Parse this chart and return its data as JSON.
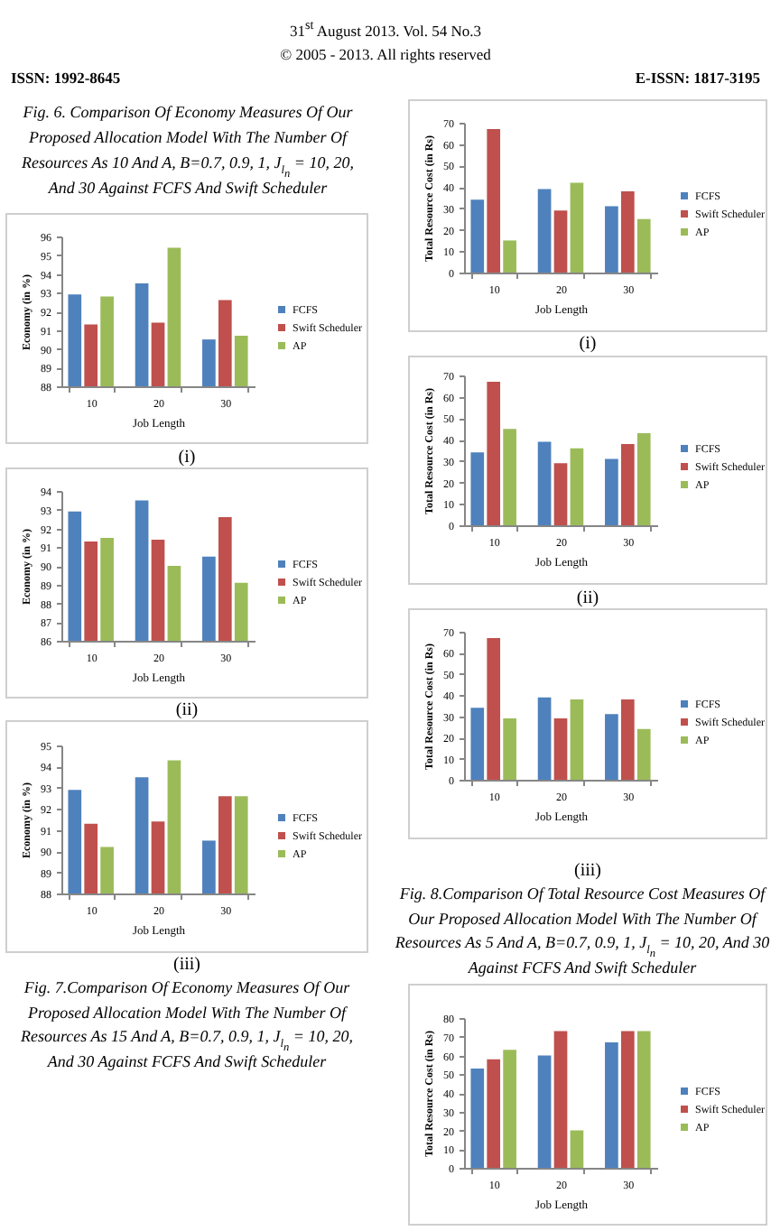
{
  "chart_data": [
    {
      "type": "other",
      "annotations": [
        "31$^{st}$ August 2013. Vol. 54 No.3",
        "© 2005 - 2013. All rights reserved",
        "ISSN: 1992-8645",
        "E-ISSN: 1817-3195"
      ]
    },
    {
      "type": "other",
      "annotations": [
        "Fig. 6. Comparison Of Economy Measures Of Our Proposed Allocation Model With The Number Of Resources As 10 And A, B=0.7, 0.9, 1, J$_{l}$$_{n}$ = 10, 20, And 30 Against FCFS And Swift Scheduler"
      ]
    },
    {
      "type": "bar",
      "xlabel": "Job Length",
      "ylabel": "Economy (in %)",
      "categories": [
        "10",
        "20",
        "30"
      ],
      "series": [
        {
          "name": "FCFS",
          "color": "#4f81bd",
          "values": [
            92.9,
            93.5,
            90.5
          ]
        },
        {
          "name": "Swift Scheduler",
          "color": "#c0504d",
          "values": [
            91.3,
            91.4,
            92.6
          ]
        },
        {
          "name": "AP",
          "color": "#9bbb59",
          "values": [
            92.8,
            95.4,
            90.7
          ]
        }
      ],
      "ylim": [
        88,
        96
      ],
      "yticks": [
        88,
        89,
        90,
        91,
        92,
        93,
        94,
        95,
        96
      ],
      "legend": "right",
      "annotations": [
        "(i)"
      ]
    },
    {
      "type": "bar",
      "xlabel": "Job Length",
      "ylabel": "Economy (in %)",
      "categories": [
        "10",
        "20",
        "30"
      ],
      "series": [
        {
          "name": "FCFS",
          "color": "#4f81bd",
          "values": [
            92.9,
            93.5,
            90.5
          ]
        },
        {
          "name": "Swift Scheduler",
          "color": "#c0504d",
          "values": [
            91.3,
            91.4,
            92.6
          ]
        },
        {
          "name": "AP",
          "color": "#9bbb59",
          "values": [
            91.5,
            90.0,
            89.1
          ]
        }
      ],
      "ylim": [
        86,
        94
      ],
      "yticks": [
        86,
        87,
        88,
        89,
        90,
        91,
        92,
        93,
        94
      ],
      "legend": "right",
      "annotations": [
        "(ii)"
      ]
    },
    {
      "type": "bar",
      "xlabel": "Job Length",
      "ylabel": "Economy (in %)",
      "categories": [
        "10",
        "20",
        "30"
      ],
      "series": [
        {
          "name": "FCFS",
          "color": "#4f81bd",
          "values": [
            92.9,
            93.5,
            90.5
          ]
        },
        {
          "name": "Swift Scheduler",
          "color": "#c0504d",
          "values": [
            91.3,
            91.4,
            92.6
          ]
        },
        {
          "name": "AP",
          "color": "#9bbb59",
          "values": [
            90.2,
            94.3,
            92.6
          ]
        }
      ],
      "ylim": [
        88,
        95
      ],
      "yticks": [
        88,
        89,
        90,
        91,
        92,
        93,
        94,
        95
      ],
      "legend": "right",
      "annotations": [
        "(iii)",
        "Fig. 7.Comparison Of Economy Measures Of Our Proposed Allocation Model With The Number Of Resources As 15 And A, B=0.7, 0.9, 1, J$_{l}$$_{n}$ = 10, 20, And 30 Against FCFS And Swift Scheduler"
      ]
    },
    {
      "type": "bar",
      "xlabel": "Job Length",
      "ylabel": "Total Resource Cost (in Rs)",
      "categories": [
        "10",
        "20",
        "30"
      ],
      "series": [
        {
          "name": "FCFS",
          "color": "#4f81bd",
          "values": [
            34,
            39,
            31
          ]
        },
        {
          "name": "Swift Scheduler",
          "color": "#c0504d",
          "values": [
            67,
            29,
            38
          ]
        },
        {
          "name": "AP",
          "color": "#9bbb59",
          "values": [
            15,
            42,
            25
          ]
        }
      ],
      "ylim": [
        0,
        70
      ],
      "yticks": [
        0,
        10,
        20,
        30,
        40,
        50,
        60,
        70
      ],
      "legend": "right",
      "annotations": [
        "(i)"
      ]
    },
    {
      "type": "bar",
      "xlabel": "Job Length",
      "ylabel": "Total Resource Cost (in Rs)",
      "categories": [
        "10",
        "20",
        "30"
      ],
      "series": [
        {
          "name": "FCFS",
          "color": "#4f81bd",
          "values": [
            34,
            39,
            31
          ]
        },
        {
          "name": "Swift Scheduler",
          "color": "#c0504d",
          "values": [
            67,
            29,
            38
          ]
        },
        {
          "name": "AP",
          "color": "#9bbb59",
          "values": [
            45,
            36,
            43
          ]
        }
      ],
      "ylim": [
        0,
        70
      ],
      "yticks": [
        0,
        10,
        20,
        30,
        40,
        50,
        60,
        70
      ],
      "legend": "right",
      "annotations": [
        "(ii)"
      ]
    },
    {
      "type": "bar",
      "xlabel": "Job Length",
      "ylabel": "Total Resource Cost (in Rs)",
      "categories": [
        "10",
        "20",
        "30"
      ],
      "series": [
        {
          "name": "FCFS",
          "color": "#4f81bd",
          "values": [
            34,
            39,
            31
          ]
        },
        {
          "name": "Swift Scheduler",
          "color": "#c0504d",
          "values": [
            67,
            29,
            38
          ]
        },
        {
          "name": "AP",
          "color": "#9bbb59",
          "values": [
            29,
            38,
            24
          ]
        }
      ],
      "ylim": [
        0,
        70
      ],
      "yticks": [
        0,
        10,
        20,
        30,
        40,
        50,
        60,
        70
      ],
      "legend": "right",
      "annotations": [
        "(iii)",
        "Fig. 8.Comparison Of Total Resource Cost Measures Of Our Proposed Allocation Model With The Number Of Resources As 5 And A, B=0.7, 0.9, 1, J$_{l}$$_{n}$ = 10, 20, And 30 Against FCFS And Swift Scheduler"
      ]
    },
    {
      "type": "bar",
      "xlabel": "Job Length",
      "ylabel": "Total Resource Cost (in Rs)",
      "categories": [
        "10",
        "20",
        "30"
      ],
      "series": [
        {
          "name": "FCFS",
          "color": "#4f81bd",
          "values": [
            53,
            60,
            67
          ]
        },
        {
          "name": "Swift Scheduler",
          "color": "#c0504d",
          "values": [
            58,
            73,
            73
          ]
        },
        {
          "name": "AP",
          "color": "#9bbb59",
          "values": [
            63,
            20,
            73
          ]
        }
      ],
      "ylim": [
        0,
        80
      ],
      "yticks": [
        0,
        10,
        20,
        30,
        40,
        50,
        60,
        70,
        80
      ],
      "legend": "right"
    }
  ]
}
